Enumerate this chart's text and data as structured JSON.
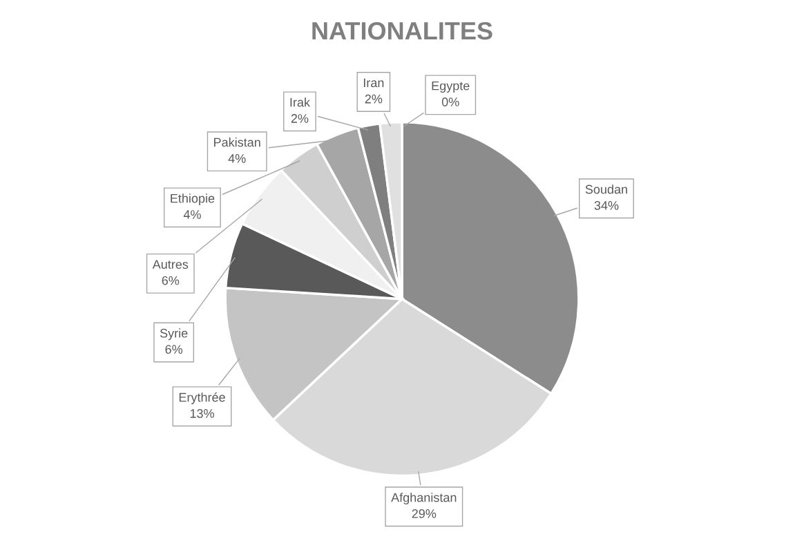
{
  "chart_data": {
    "type": "pie",
    "title": "NATIONALITES",
    "categories": [
      "Soudan",
      "Afghanistan",
      "Erythrée",
      "Syrie",
      "Autres",
      "Ethiopie",
      "Pakistan",
      "Irak",
      "Iran",
      "Egypte"
    ],
    "values": [
      34,
      29,
      13,
      6,
      6,
      4,
      4,
      2,
      2,
      0
    ],
    "value_labels": [
      "34%",
      "29%",
      "13%",
      "6%",
      "6%",
      "4%",
      "4%",
      "2%",
      "2%",
      "0%"
    ],
    "colors": [
      "#8c8c8c",
      "#d9d9d9",
      "#c4c4c4",
      "#595959",
      "#f0f0f0",
      "#cfcfcf",
      "#a6a6a6",
      "#7f7f7f",
      "#e0e0e0",
      "#999999"
    ],
    "legend": false
  }
}
